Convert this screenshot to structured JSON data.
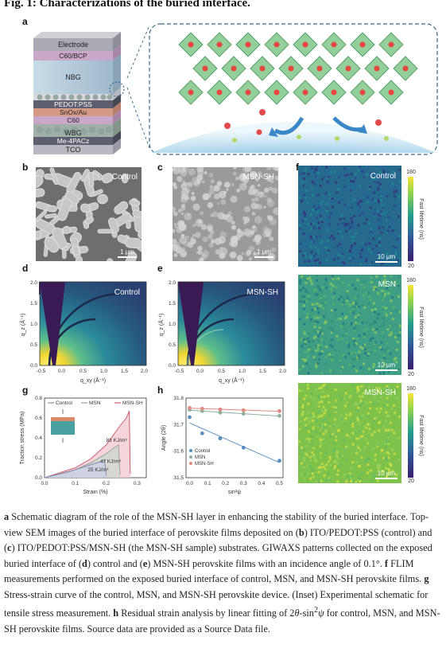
{
  "figure_title": "Fig. 1: Characterizations of the buried interface.",
  "panel_labels": [
    "a",
    "b",
    "c",
    "d",
    "e",
    "f",
    "g",
    "h"
  ],
  "panel_a": {
    "layers": [
      "Electrode",
      "C60/BCP",
      "NBG",
      "PEDOT:PSS",
      "SnOx/Au",
      "C60",
      "WBG",
      "Me-4PACz",
      "TCO"
    ]
  },
  "panel_b": {
    "label": "Control",
    "scale": "1 μm"
  },
  "panel_c": {
    "label": "MSN-SH",
    "scale": "1 μm"
  },
  "panel_d": {
    "label": "Control",
    "xlabel": "q_xy (Å⁻¹)",
    "ylabel": "q_z (Å⁻¹)",
    "xticks": [
      "-0.5",
      "0.0",
      "0.5",
      "1.0",
      "1.5",
      "2.0"
    ],
    "yticks": [
      "0.0",
      "0.5",
      "1.0",
      "1.5",
      "2.0"
    ]
  },
  "panel_e": {
    "label": "MSN-SH",
    "xlabel": "q_xy (Å⁻¹)",
    "ylabel": "q_z (Å⁻¹)",
    "xticks": [
      "-0.5",
      "0.0",
      "0.5",
      "1.0",
      "1.5",
      "2.0"
    ],
    "yticks": [
      "0.0",
      "0.5",
      "1.0",
      "1.5",
      "2.0"
    ]
  },
  "panel_f": {
    "maps": [
      {
        "label": "Control",
        "scale": "10 μm"
      },
      {
        "label": "MSN",
        "scale": "10 μm"
      },
      {
        "label": "MSN-SH",
        "scale": "10 μm"
      }
    ],
    "colorbar": {
      "title": "Fast lifetime (ns)",
      "max": "180",
      "min": "20"
    }
  },
  "chart_data": [
    {
      "panel": "g",
      "type": "line",
      "xlabel": "Strain (%)",
      "ylabel": "Traction stress (MPa)",
      "xlim": [
        0,
        0.33
      ],
      "ylim": [
        0,
        0.8
      ],
      "xticks": [
        "0.0",
        "0.1",
        "0.2",
        "0.3"
      ],
      "yticks": [
        "0.0",
        "0.2",
        "0.4",
        "0.6",
        "0.8"
      ],
      "legend": "top",
      "series": [
        {
          "name": "Control",
          "color": "#8a8fb0",
          "x": [
            0,
            0.04,
            0.08,
            0.12,
            0.16,
            0.18,
            0.195,
            0.2
          ],
          "y": [
            0,
            0.03,
            0.06,
            0.1,
            0.14,
            0.16,
            0.175,
            0.02
          ],
          "annotation": "25 KJ/m³"
        },
        {
          "name": "MSN",
          "color": "#9aa09a",
          "x": [
            0,
            0.05,
            0.1,
            0.15,
            0.2,
            0.225,
            0.24,
            0.245
          ],
          "y": [
            0,
            0.04,
            0.08,
            0.15,
            0.24,
            0.3,
            0.33,
            0.03
          ],
          "annotation": "47 KJ/m³"
        },
        {
          "name": "MSN-SH",
          "color": "#c96070",
          "x": [
            0,
            0.05,
            0.1,
            0.15,
            0.2,
            0.24,
            0.265,
            0.275,
            0.278
          ],
          "y": [
            0,
            0.05,
            0.1,
            0.19,
            0.33,
            0.5,
            0.6,
            0.67,
            0.04
          ],
          "annotation": "83 KJ/m³"
        }
      ]
    },
    {
      "panel": "h",
      "type": "scatter",
      "xlabel": "sin²ψ",
      "ylabel": "Angle (2θ)",
      "xlim": [
        -0.02,
        0.52
      ],
      "ylim": [
        31.5,
        31.8
      ],
      "xticks": [
        "0.0",
        "0.1",
        "0.2",
        "0.3",
        "0.4",
        "0.5"
      ],
      "yticks": [
        "31.5",
        "31.6",
        "31.7",
        "31.8"
      ],
      "legend": "bottom-left",
      "series": [
        {
          "name": "Control",
          "color": "#5a8fc0",
          "x": [
            0,
            0.07,
            0.17,
            0.3,
            0.5
          ],
          "y": [
            31.728,
            31.667,
            31.648,
            31.613,
            31.564
          ]
        },
        {
          "name": "MSN",
          "color": "#8fb09a",
          "x": [
            0,
            0.07,
            0.17,
            0.3,
            0.5
          ],
          "y": [
            31.756,
            31.751,
            31.745,
            31.741,
            31.733
          ]
        },
        {
          "name": "MSN-SH",
          "color": "#e08a80",
          "x": [
            0,
            0.07,
            0.17,
            0.3,
            0.5
          ],
          "y": [
            31.763,
            31.76,
            31.757,
            31.754,
            31.751
          ]
        }
      ]
    }
  ],
  "caption_html": "<b>a</b> Schematic diagram of the role of the MSN-SH layer in enhancing the stability of the buried interface. Top-view SEM images of the buried interface of perovskite films deposited on (<b>b</b>) ITO/PEDOT:PSS (control) and (<b>c</b>) ITO/PEDOT:PSS/MSN-SH (the MSN-SH sample) substrates. GIWAXS patterns collected on the exposed buried interface of (<b>d</b>) control and (<b>e</b>) MSN-SH perovskite films with an incidence angle of 0.1°. <b>f</b> FLIM measurements performed on the exposed buried interface of control, MSN, and MSN-SH perovskite films. <b>g</b> Stress-strain curve of the control, MSN, and MSN-SH perovskite device. (Inset) Experimental schematic for tensile stress measurement. <b>h</b> Residual strain analysis by linear fitting of 2<i>θ</i>-sin<sup>2</sup><i>ψ</i> for control, MSN, and MSN-SH perovskite films. Source data are provided as a Source Data file."
}
